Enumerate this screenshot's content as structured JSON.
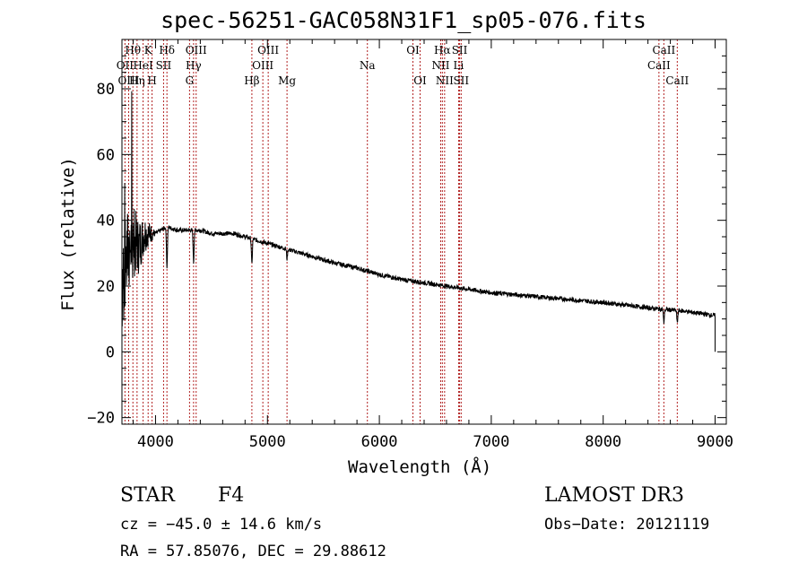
{
  "chart_data": {
    "type": "line",
    "title": "spec-56251-GAC058N31F1_sp05-076.fits",
    "xlabel": "Wavelength (Å)",
    "ylabel": "Flux (relative)",
    "xlim": [
      3700,
      9100
    ],
    "ylim": [
      -22,
      95
    ],
    "x_ticks": [
      4000,
      5000,
      6000,
      7000,
      8000,
      9000
    ],
    "x_tick_labels": [
      "4000",
      "5000",
      "6000",
      "7000",
      "8000",
      "9000"
    ],
    "y_ticks": [
      -20,
      0,
      20,
      40,
      60,
      80
    ],
    "y_tick_labels": [
      "−20",
      "0",
      "20",
      "40",
      "60",
      "80"
    ],
    "spectrum_continuum": {
      "x": [
        3700,
        3750,
        3800,
        3850,
        3900,
        3950,
        4000,
        4100,
        4200,
        4300,
        4400,
        4500,
        4600,
        4700,
        4800,
        4900,
        5000,
        5200,
        5400,
        5600,
        5800,
        6000,
        6200,
        6400,
        6600,
        6800,
        7000,
        7500,
        8000,
        8500,
        8700,
        8900,
        9000
      ],
      "y": [
        20,
        30,
        34,
        32,
        36,
        36,
        36,
        38,
        37,
        37,
        37,
        36,
        36,
        36,
        35,
        34,
        33,
        31,
        29,
        27,
        25.5,
        23.5,
        22,
        21,
        20,
        19,
        18,
        16.5,
        15,
        13,
        12.5,
        11.5,
        11
      ]
    },
    "absorption_features": [
      {
        "line": "H-beta",
        "x": 4861,
        "depth": 8
      },
      {
        "line": "H-gamma",
        "x": 4340,
        "depth": 10
      },
      {
        "line": "H-delta",
        "x": 4102,
        "depth": 12
      },
      {
        "line": "Mg",
        "x": 5175,
        "depth": 3
      },
      {
        "line": "CaII",
        "x": 8542,
        "depth": 4
      },
      {
        "line": "CaII",
        "x": 8662,
        "depth": 4
      }
    ],
    "line_markers": [
      {
        "label": "Hθ",
        "x": 3798,
        "row": 1
      },
      {
        "label": "OII",
        "x": 3727,
        "row": 2
      },
      {
        "label": "OIII",
        "x": 3760,
        "row": 3
      },
      {
        "label": "K",
        "x": 3934,
        "row": 1
      },
      {
        "label": "HeI",
        "x": 3889,
        "row": 2
      },
      {
        "label": "Hη",
        "x": 3835,
        "row": 3
      },
      {
        "label": "SII",
        "x": 4072,
        "row": 2
      },
      {
        "label": "H",
        "x": 3969,
        "row": 3
      },
      {
        "label": "Hδ",
        "x": 4102,
        "row": 1
      },
      {
        "label": "OIII",
        "x": 4363,
        "row": 1
      },
      {
        "label": "Hγ",
        "x": 4340,
        "row": 2
      },
      {
        "label": "G",
        "x": 4304,
        "row": 3
      },
      {
        "label": "OIII",
        "x": 5007,
        "row": 1
      },
      {
        "label": "OIII",
        "x": 4959,
        "row": 2
      },
      {
        "label": "Hβ",
        "x": 4861,
        "row": 3
      },
      {
        "label": "Mg",
        "x": 5175,
        "row": 3
      },
      {
        "label": "Na",
        "x": 5893,
        "row": 2
      },
      {
        "label": "OI",
        "x": 6300,
        "row": 1
      },
      {
        "label": "OI",
        "x": 6364,
        "row": 3
      },
      {
        "label": "Hα",
        "x": 6563,
        "row": 1
      },
      {
        "label": "NII",
        "x": 6548,
        "row": 2
      },
      {
        "label": "NII",
        "x": 6583,
        "row": 3
      },
      {
        "label": "SII",
        "x": 6717,
        "row": 1
      },
      {
        "label": "Li",
        "x": 6708,
        "row": 2
      },
      {
        "label": "SII",
        "x": 6731,
        "row": 3
      },
      {
        "label": "CaII",
        "x": 8542,
        "row": 1
      },
      {
        "label": "CaII",
        "x": 8498,
        "row": 2
      },
      {
        "label": "CaII",
        "x": 8662,
        "row": 3
      }
    ]
  },
  "info": {
    "class_label": "STAR",
    "subclass": "F4",
    "survey": "LAMOST DR3",
    "cz_text": "cz = −45.0 ± 14.6 km/s",
    "obs_date_text": "Obs−Date: 20121119",
    "radec_text": "RA =  57.85076, DEC =  29.88612"
  },
  "colors": {
    "spectrum": "#000000",
    "line_markers": "#b22222",
    "axes": "#000000",
    "background": "#ffffff"
  }
}
